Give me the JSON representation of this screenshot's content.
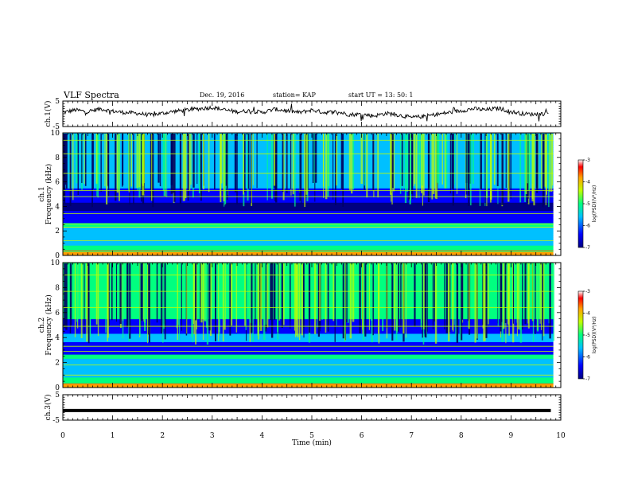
{
  "header": {
    "title": "VLF Spectra",
    "date": "Dec. 19, 2016",
    "station": "station= KAP",
    "start": "start  UT =   13: 50: 1"
  },
  "chart_data": [
    {
      "type": "line",
      "panel": "ch1-voltage",
      "ylabel": "ch.1(V)",
      "ylim": [
        -5,
        5
      ],
      "yticks": [
        "5",
        "-5"
      ],
      "xlim": [
        0,
        10
      ],
      "x": [
        0,
        0.25,
        0.5,
        0.75,
        1,
        1.25,
        1.5,
        1.75,
        2,
        2.25,
        2.5,
        2.75,
        3,
        3.25,
        3.5,
        3.75,
        4,
        4.25,
        4.5,
        4.75,
        5,
        5.25,
        5.5,
        5.75,
        6,
        6.25,
        6.5,
        6.75,
        7,
        7.25,
        7.5,
        7.75,
        8,
        8.25,
        8.5,
        8.75,
        9,
        9.25,
        9.5,
        9.75
      ],
      "values": [
        0.5,
        1.5,
        0.8,
        2,
        1,
        0.5,
        0.2,
        -0.5,
        0.2,
        1,
        1.5,
        2,
        2.5,
        1.5,
        0.8,
        1.2,
        0.5,
        1.8,
        1.2,
        0.5,
        1.5,
        0.5,
        0.8,
        -0.3,
        -0.2,
        -0.8,
        0.2,
        -0.5,
        -1.5,
        -1,
        -0.3,
        0.5,
        1.2,
        2,
        1.5,
        2.2,
        0.8,
        0,
        -0.2,
        0.2
      ]
    },
    {
      "type": "heatmap",
      "panel": "ch1-spectrogram",
      "ylabel": "ch.1 Frequency (kHz)",
      "ylim": [
        0,
        10
      ],
      "yticks": [
        "0",
        "2",
        "4",
        "6",
        "8",
        "10"
      ],
      "xlim": [
        0,
        10
      ],
      "colorbar": {
        "label": "log(PSD)(V²/Hz)",
        "range": [
          -7,
          -3
        ],
        "ticks": [
          "-3",
          "-4",
          "-5",
          "-6",
          "-7"
        ]
      }
    },
    {
      "type": "heatmap",
      "panel": "ch2-spectrogram",
      "ylabel": "ch.2 Frequency (kHz)",
      "ylim": [
        0,
        10
      ],
      "yticks": [
        "0",
        "2",
        "4",
        "6",
        "8",
        "10"
      ],
      "xlim": [
        0,
        10
      ],
      "colorbar": {
        "label": "log(PSD)(V²/Hz)",
        "range": [
          -7,
          -3
        ],
        "ticks": [
          "-3",
          "-4",
          "-5",
          "-6",
          "-7"
        ]
      }
    },
    {
      "type": "line",
      "panel": "ch3-voltage",
      "ylabel": "ch.3(V)",
      "ylim": [
        -5,
        5
      ],
      "yticks": [
        "5",
        "-5"
      ],
      "xlim": [
        0,
        10
      ],
      "x": [
        0,
        9.8
      ],
      "values": [
        -1.2,
        -1.2
      ]
    }
  ],
  "xaxis": {
    "label": "Time  (min)",
    "ticks": [
      "0",
      "1",
      "2",
      "3",
      "4",
      "5",
      "6",
      "7",
      "8",
      "9",
      "10"
    ]
  }
}
